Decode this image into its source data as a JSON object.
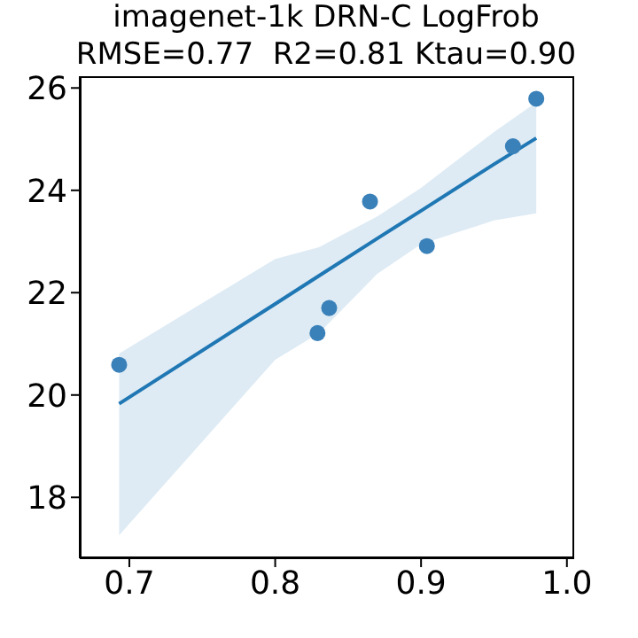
{
  "chart_data": {
    "type": "scatter",
    "title": "imagenet-1k DRN-C LogFrob",
    "subtitle": "RMSE=0.77  R2=0.81 Ktau=0.90",
    "xlim": [
      0.666,
      1.005
    ],
    "xticks": [
      0.7,
      0.8,
      0.9,
      {
        "value": 1.0,
        "label": "1.0"
      }
    ],
    "ylim": [
      16.81,
      26.23
    ],
    "yticks": [
      18,
      20,
      22,
      24,
      26
    ],
    "grid": false,
    "legend": false,
    "series": [
      {
        "color": "#3a81ba",
        "marker": "circle",
        "x": [
          0.693,
          0.829,
          0.837,
          0.865,
          0.904,
          0.963,
          0.979
        ],
        "values": [
          20.59,
          21.21,
          21.7,
          23.78,
          22.91,
          24.86,
          25.79
        ]
      },
      {
        "type": "line",
        "color": "#1f77b4",
        "marker": "none",
        "x": [
          0.693,
          0.8,
          0.83,
          0.87,
          0.9,
          0.95,
          0.979
        ],
        "values": [
          19.83,
          21.78,
          22.33,
          23.06,
          23.6,
          24.51,
          25.02
        ],
        "lower": [
          17.26,
          20.69,
          21.21,
          22.37,
          22.95,
          23.41,
          23.55
        ],
        "upper": [
          20.81,
          22.66,
          22.89,
          23.49,
          24.05,
          25.14,
          25.72
        ]
      }
    ]
  }
}
